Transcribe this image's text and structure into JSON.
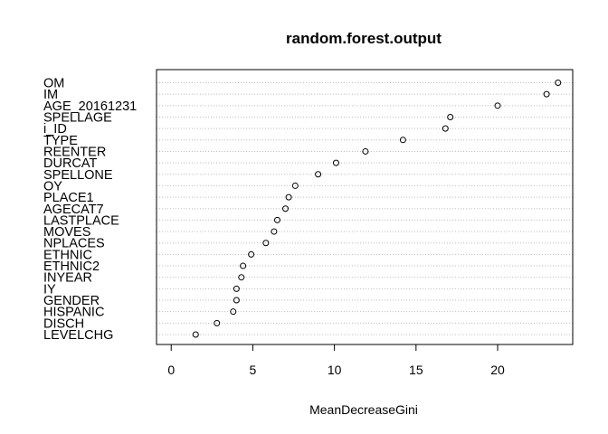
{
  "chart_data": {
    "type": "scatter",
    "title": "random.forest.output",
    "xlabel": "MeanDecreaseGini",
    "ylabel": "",
    "xlim": [
      -0.9,
      24.6
    ],
    "xticks": [
      "0",
      "5",
      "10",
      "15",
      "20"
    ],
    "xtick_values": [
      0,
      5,
      10,
      15,
      20
    ],
    "grid": "horizontal-dotted",
    "series": [
      {
        "categories": [
          "OM",
          "IM",
          "AGE_20161231",
          "SPELLAGE",
          "i_ID",
          "TYPE",
          "REENTER",
          "DURCAT",
          "SPELLONE",
          "OY",
          "PLACE1",
          "AGECAT7",
          "LASTPLACE",
          "MOVES",
          "NPLACES",
          "ETHNIC",
          "ETHNIC2",
          "INYEAR",
          "IY",
          "GENDER",
          "HISPANIC",
          "DISCH",
          "LEVELCHG"
        ],
        "values": [
          23.7,
          23.0,
          20.0,
          17.1,
          16.8,
          14.2,
          11.9,
          10.1,
          9.0,
          7.6,
          7.2,
          7.0,
          6.5,
          6.3,
          5.8,
          4.9,
          4.4,
          4.3,
          4.0,
          4.0,
          3.8,
          2.8,
          1.5
        ]
      }
    ]
  }
}
